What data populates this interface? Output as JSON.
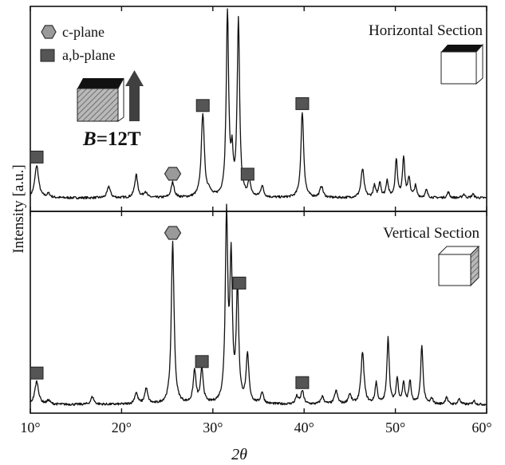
{
  "chart_data": {
    "type": "line",
    "xlabel": "2θ",
    "ylabel": "Intensity [a.u.]",
    "xlim": [
      10,
      60
    ],
    "x_ticks": [
      "10°",
      "20°",
      "30°",
      "40°",
      "50°",
      "60°"
    ],
    "tick_values": [
      10,
      20,
      30,
      40,
      50,
      60
    ],
    "grid": false,
    "legend": {
      "position": "top-left",
      "entries": [
        {
          "marker": "hexagon",
          "label": "c-plane"
        },
        {
          "marker": "square",
          "label": "a,b-plane"
        }
      ]
    },
    "field_label": {
      "symbol": "B",
      "rest": "=12T"
    },
    "panels": [
      {
        "name": "Horizontal Section",
        "baseline": 0.02,
        "peaks": [
          {
            "x": 10.7,
            "h": 0.17,
            "w": 0.25
          },
          {
            "x": 12.0,
            "h": 0.02,
            "w": 0.2
          },
          {
            "x": 18.6,
            "h": 0.06,
            "w": 0.2
          },
          {
            "x": 21.6,
            "h": 0.12,
            "w": 0.2
          },
          {
            "x": 22.6,
            "h": 0.03,
            "w": 0.2
          },
          {
            "x": 25.6,
            "h": 0.08,
            "w": 0.2
          },
          {
            "x": 28.9,
            "h": 0.44,
            "w": 0.2
          },
          {
            "x": 29.6,
            "h": 0.03,
            "w": 0.18
          },
          {
            "x": 31.6,
            "h": 0.96,
            "w": 0.16
          },
          {
            "x": 32.1,
            "h": 0.19,
            "w": 0.14
          },
          {
            "x": 32.8,
            "h": 0.92,
            "w": 0.16
          },
          {
            "x": 34.0,
            "h": 0.08,
            "w": 0.18
          },
          {
            "x": 35.4,
            "h": 0.06,
            "w": 0.18
          },
          {
            "x": 39.8,
            "h": 0.45,
            "w": 0.18
          },
          {
            "x": 41.9,
            "h": 0.06,
            "w": 0.2
          },
          {
            "x": 46.4,
            "h": 0.15,
            "w": 0.2
          },
          {
            "x": 47.7,
            "h": 0.06,
            "w": 0.15
          },
          {
            "x": 48.3,
            "h": 0.08,
            "w": 0.15
          },
          {
            "x": 49.1,
            "h": 0.09,
            "w": 0.15
          },
          {
            "x": 50.1,
            "h": 0.2,
            "w": 0.15
          },
          {
            "x": 50.9,
            "h": 0.21,
            "w": 0.15
          },
          {
            "x": 51.5,
            "h": 0.1,
            "w": 0.15
          },
          {
            "x": 52.2,
            "h": 0.06,
            "w": 0.15
          },
          {
            "x": 53.4,
            "h": 0.04,
            "w": 0.15
          },
          {
            "x": 55.8,
            "h": 0.03,
            "w": 0.15
          },
          {
            "x": 57.5,
            "h": 0.02,
            "w": 0.15
          },
          {
            "x": 58.5,
            "h": 0.02,
            "w": 0.15
          }
        ],
        "markers": [
          {
            "type": "square",
            "x": 10.7
          },
          {
            "type": "hexagon",
            "x": 25.6
          },
          {
            "type": "square",
            "x": 28.9
          },
          {
            "type": "square",
            "x": 33.8
          },
          {
            "type": "square",
            "x": 39.8
          }
        ]
      },
      {
        "name": "Vertical Section",
        "baseline": 0.02,
        "peaks": [
          {
            "x": 10.7,
            "h": 0.12,
            "w": 0.25
          },
          {
            "x": 12.0,
            "h": 0.02,
            "w": 0.2
          },
          {
            "x": 16.8,
            "h": 0.04,
            "w": 0.2
          },
          {
            "x": 21.6,
            "h": 0.06,
            "w": 0.2
          },
          {
            "x": 22.7,
            "h": 0.08,
            "w": 0.2
          },
          {
            "x": 25.6,
            "h": 0.85,
            "w": 0.18
          },
          {
            "x": 28.0,
            "h": 0.17,
            "w": 0.18
          },
          {
            "x": 28.8,
            "h": 0.18,
            "w": 0.18
          },
          {
            "x": 31.5,
            "h": 0.97,
            "w": 0.16
          },
          {
            "x": 32.0,
            "h": 0.72,
            "w": 0.16
          },
          {
            "x": 32.7,
            "h": 0.59,
            "w": 0.16
          },
          {
            "x": 33.8,
            "h": 0.25,
            "w": 0.18
          },
          {
            "x": 35.4,
            "h": 0.06,
            "w": 0.18
          },
          {
            "x": 39.2,
            "h": 0.04,
            "w": 0.18
          },
          {
            "x": 39.8,
            "h": 0.07,
            "w": 0.18
          },
          {
            "x": 42.0,
            "h": 0.04,
            "w": 0.2
          },
          {
            "x": 43.5,
            "h": 0.07,
            "w": 0.2
          },
          {
            "x": 45.0,
            "h": 0.05,
            "w": 0.2
          },
          {
            "x": 46.4,
            "h": 0.27,
            "w": 0.2
          },
          {
            "x": 47.9,
            "h": 0.11,
            "w": 0.15
          },
          {
            "x": 49.2,
            "h": 0.35,
            "w": 0.15
          },
          {
            "x": 50.2,
            "h": 0.13,
            "w": 0.15
          },
          {
            "x": 50.9,
            "h": 0.11,
            "w": 0.15
          },
          {
            "x": 51.6,
            "h": 0.12,
            "w": 0.15
          },
          {
            "x": 52.9,
            "h": 0.31,
            "w": 0.15
          },
          {
            "x": 54.0,
            "h": 0.03,
            "w": 0.15
          },
          {
            "x": 55.6,
            "h": 0.04,
            "w": 0.15
          },
          {
            "x": 57.0,
            "h": 0.03,
            "w": 0.15
          },
          {
            "x": 58.6,
            "h": 0.02,
            "w": 0.15
          }
        ],
        "markers": [
          {
            "type": "square",
            "x": 10.7
          },
          {
            "type": "hexagon",
            "x": 25.6
          },
          {
            "type": "square",
            "x": 28.8
          },
          {
            "type": "square",
            "x": 32.9
          },
          {
            "type": "square",
            "x": 39.8
          }
        ]
      }
    ]
  },
  "colors": {
    "line": "#111111",
    "square_marker": "#555555",
    "hexagon_marker": "#9a9a9a",
    "arrow": "#404040",
    "cube_top": "#111111",
    "cube_hatch": "#9a9a9a"
  }
}
